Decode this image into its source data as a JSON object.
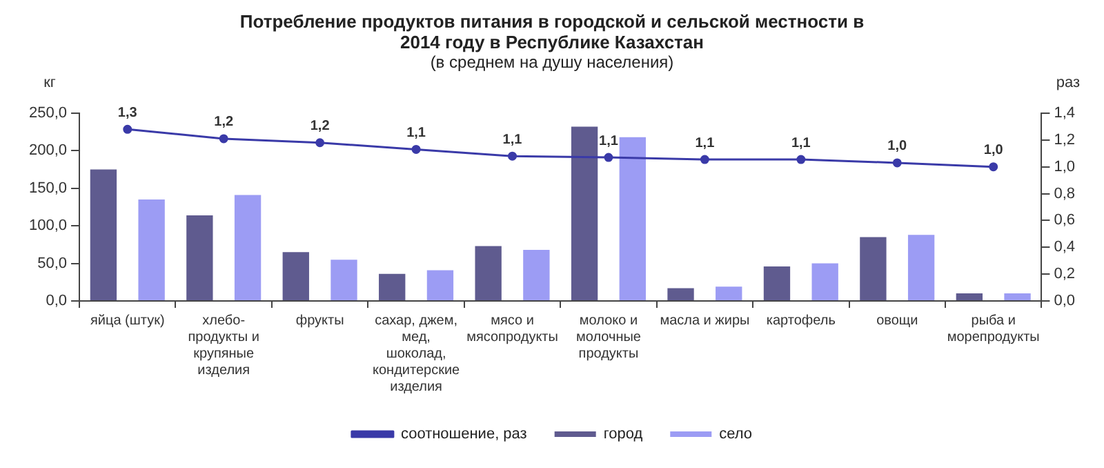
{
  "chart_data": {
    "type": "bar",
    "title": "Потребление продуктов питания в городской и сельской местности в 2014 году в Республике Казахстан",
    "subtitle": "(в среднем на душу населения)",
    "ylabel": "кг",
    "y2label": "раз",
    "categories": [
      "яйца (штук)",
      "хлебо-продукты и крупяные изделия",
      "фрукты",
      "сахар, джем, мед, шоколад, кондитерские изделия",
      "мясо и мясопродукты",
      "молоко и молочные продукты",
      "масла и жиры",
      "картофель",
      "овощи",
      "рыба и морепродукты"
    ],
    "series": [
      {
        "name": "город",
        "color": "#5f5b8f",
        "values": [
          175,
          114,
          65,
          36,
          73,
          232,
          17,
          46,
          85,
          10
        ]
      },
      {
        "name": "село",
        "color": "#9c9cf4",
        "values": [
          135,
          141,
          55,
          41,
          68,
          218,
          19,
          50,
          88,
          10
        ]
      },
      {
        "name": "соотношение, раз",
        "type": "line",
        "axis": "y2",
        "color": "#3a3aa8",
        "marker": "circle",
        "values": [
          1.28,
          1.21,
          1.18,
          1.13,
          1.08,
          1.07,
          1.055,
          1.055,
          1.03,
          1.0
        ],
        "value_labels": [
          "1,3",
          "1,2",
          "1,2",
          "1,1",
          "1,1",
          "1,1",
          "1,1",
          "1,1",
          "1,0",
          "1,0"
        ]
      }
    ],
    "ylim": [
      0,
      250
    ],
    "yticks": [
      {
        "value": 0,
        "label": "0,0"
      },
      {
        "value": 50,
        "label": "50,0"
      },
      {
        "value": 100,
        "label": "100,0"
      },
      {
        "value": 150,
        "label": "150,0"
      },
      {
        "value": 200,
        "label": "200,0"
      },
      {
        "value": 250,
        "label": "250,0"
      }
    ],
    "y2lim": [
      0,
      1.4
    ],
    "y2ticks": [
      {
        "value": 0,
        "label": "0,0"
      },
      {
        "value": 0.2,
        "label": "0,2"
      },
      {
        "value": 0.4,
        "label": "0,4"
      },
      {
        "value": 0.6,
        "label": "0,6"
      },
      {
        "value": 0.8,
        "label": "0,8"
      },
      {
        "value": 1.0,
        "label": "1,0"
      },
      {
        "value": 1.2,
        "label": "1,2"
      },
      {
        "value": 1.4,
        "label": "1,4"
      }
    ],
    "grid": false,
    "legend": "bottom"
  }
}
